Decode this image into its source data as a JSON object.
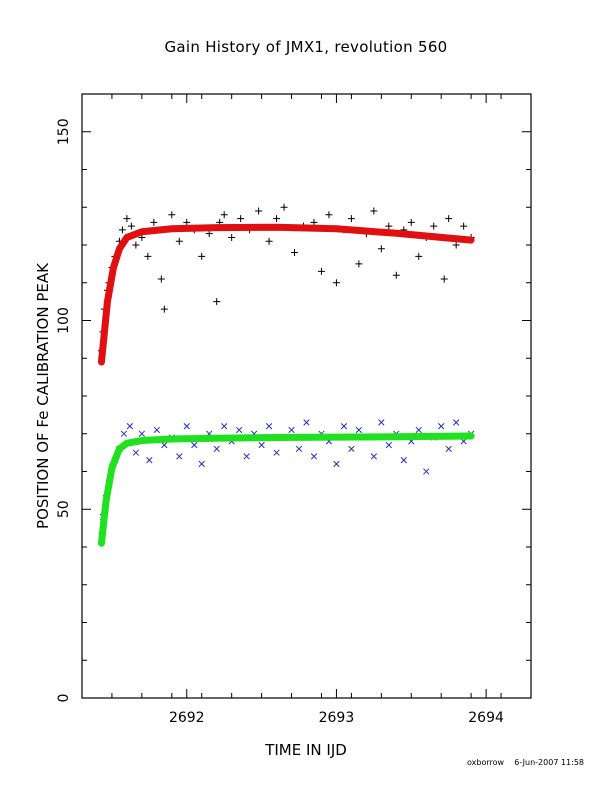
{
  "chart_data": {
    "type": "scatter",
    "title": "Gain History of JMX1, revolution 560",
    "xlabel": "TIME IN IJD",
    "ylabel": "POSITION OF Fe CALIBRATION PEAK",
    "xlim": [
      2691.3,
      2694.3
    ],
    "ylim": [
      0,
      160
    ],
    "xticks": [
      2692,
      2693,
      2694
    ],
    "yticks": [
      0,
      50,
      100,
      150
    ],
    "grid": false,
    "series": [
      {
        "marker": "plus",
        "color": "#000000",
        "fit_color": "#e01010",
        "fit_x": [
          2691.43,
          2691.47,
          2691.51,
          2691.55,
          2691.6,
          2691.7,
          2691.9,
          2692.2,
          2692.6,
          2693.0,
          2693.4,
          2693.9
        ],
        "fit_y": [
          89,
          105,
          114,
          119,
          122,
          123.5,
          124.3,
          124.6,
          124.7,
          124.3,
          123.1,
          121.3
        ],
        "points_x": [
          2691.43,
          2691.44,
          2691.45,
          2691.47,
          2691.48,
          2691.5,
          2691.52,
          2691.55,
          2691.57,
          2691.6,
          2691.63,
          2691.66,
          2691.7,
          2691.74,
          2691.78,
          2691.83,
          2691.85,
          2691.9,
          2691.95,
          2692.0,
          2692.05,
          2692.1,
          2692.15,
          2692.2,
          2692.22,
          2692.25,
          2692.3,
          2692.36,
          2692.42,
          2692.48,
          2692.55,
          2692.6,
          2692.65,
          2692.72,
          2692.78,
          2692.85,
          2692.9,
          2692.95,
          2693.0,
          2693.05,
          2693.1,
          2693.15,
          2693.2,
          2693.25,
          2693.3,
          2693.35,
          2693.4,
          2693.45,
          2693.5,
          2693.55,
          2693.6,
          2693.65,
          2693.72,
          2693.75,
          2693.8,
          2693.85,
          2693.9
        ],
        "points_y": [
          92,
          97,
          103,
          108,
          110,
          114,
          117,
          121,
          124,
          127,
          125,
          120,
          122,
          117,
          126,
          111,
          103,
          128,
          121,
          126,
          124,
          117,
          123,
          105,
          126,
          128,
          122,
          127,
          124,
          129,
          121,
          127,
          130,
          118,
          125,
          126,
          113,
          128,
          110,
          124,
          127,
          115,
          123,
          129,
          119,
          125,
          112,
          124,
          126,
          117,
          122,
          125,
          111,
          127,
          120,
          125,
          122
        ]
      },
      {
        "marker": "cross",
        "color": "#2030c0",
        "fit_color": "#20e020",
        "fit_x": [
          2691.43,
          2691.46,
          2691.5,
          2691.55,
          2691.6,
          2691.7,
          2691.9,
          2692.2,
          2692.6,
          2693.0,
          2693.4,
          2693.9
        ],
        "fit_y": [
          41,
          52,
          61,
          66,
          67.5,
          68.2,
          68.6,
          68.8,
          69,
          69.1,
          69.2,
          69.4
        ],
        "points_x": [
          2691.43,
          2691.44,
          2691.46,
          2691.48,
          2691.5,
          2691.52,
          2691.55,
          2691.58,
          2691.62,
          2691.66,
          2691.7,
          2691.75,
          2691.8,
          2691.85,
          2691.9,
          2691.95,
          2692.0,
          2692.05,
          2692.1,
          2692.15,
          2692.2,
          2692.25,
          2692.3,
          2692.35,
          2692.4,
          2692.45,
          2692.5,
          2692.55,
          2692.6,
          2692.65,
          2692.7,
          2692.75,
          2692.8,
          2692.85,
          2692.9,
          2692.95,
          2693.0,
          2693.05,
          2693.1,
          2693.15,
          2693.2,
          2693.25,
          2693.3,
          2693.35,
          2693.4,
          2693.45,
          2693.5,
          2693.55,
          2693.6,
          2693.65,
          2693.7,
          2693.75,
          2693.8,
          2693.85,
          2693.9
        ],
        "points_y": [
          43,
          48,
          53,
          57,
          61,
          63,
          66,
          70,
          72,
          65,
          70,
          63,
          71,
          67,
          69,
          64,
          72,
          67,
          62,
          70,
          66,
          72,
          68,
          71,
          64,
          70,
          67,
          72,
          65,
          69,
          71,
          66,
          73,
          64,
          70,
          68,
          62,
          72,
          66,
          71,
          69,
          64,
          73,
          67,
          70,
          63,
          68,
          71,
          60,
          69,
          72,
          66,
          73,
          68,
          70
        ]
      }
    ]
  },
  "footer": {
    "user": "oxborrow",
    "timestamp": "6-Jun-2007 11:58"
  }
}
